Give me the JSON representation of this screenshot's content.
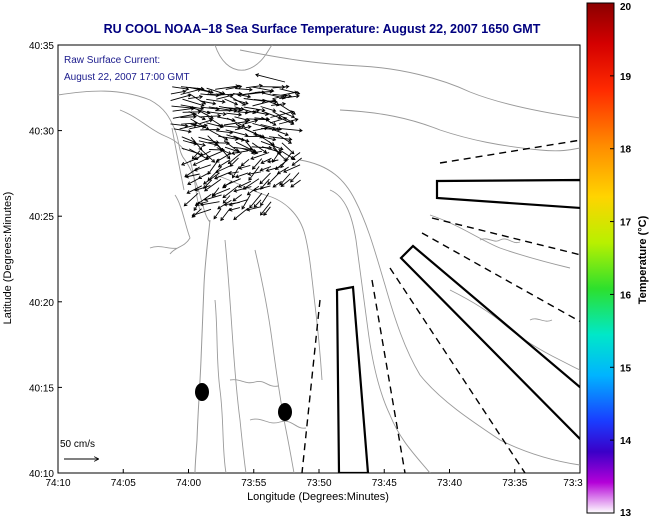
{
  "title": "RU COOL  NOAA–18  Sea Surface Temperature:  August 22, 2007 1650 GMT",
  "legend": {
    "line1": "Raw Surface Current:",
    "line2": "August 22, 2007 17:00 GMT"
  },
  "scale_label": "50 cm/s",
  "chart_data": {
    "type": "map",
    "title": "RU COOL  NOAA–18  Sea Surface Temperature:  August 22, 2007 1650 GMT",
    "xlabel": "Longitude (Degrees:Minutes)",
    "ylabel": "Latitude (Degrees:Minutes)",
    "x_ticks": [
      "74:10",
      "74:05",
      "74:00",
      "73:55",
      "73:50",
      "73:45",
      "73:40",
      "73:35",
      "73:3"
    ],
    "y_ticks": [
      "40:35",
      "40:30",
      "40:25",
      "40:20",
      "40:15",
      "40:10"
    ],
    "xlim_minutes_west": [
      70,
      30
    ],
    "ylim_minutes": [
      10,
      35
    ],
    "colorbar": {
      "label": "Temperature (°C)",
      "ticks": [
        "20",
        "19",
        "18",
        "17",
        "16",
        "15",
        "14",
        "13"
      ],
      "range": [
        13,
        20
      ]
    }
  },
  "colors": {
    "title": "#00007f",
    "legend_text": "#1a1a8c",
    "coast": "#9a9a9a"
  }
}
